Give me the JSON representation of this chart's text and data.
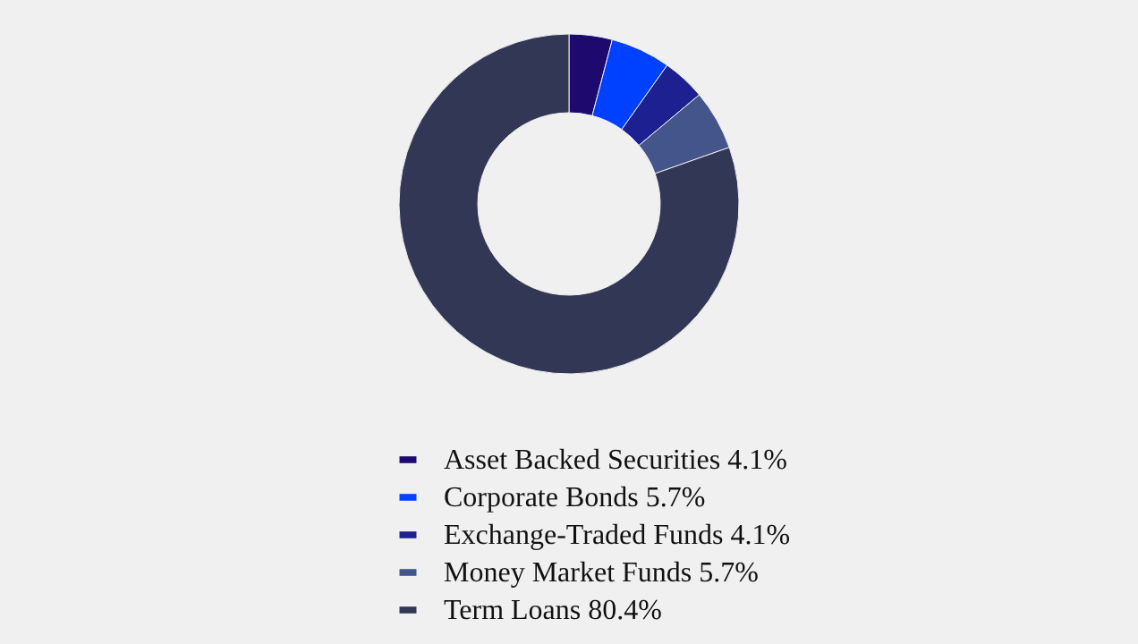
{
  "chart_data": {
    "type": "donut",
    "categories": [
      "Asset Backed Securities 4.1%",
      "Corporate Bonds 5.7%",
      "Exchange-Traded Funds 4.1%",
      "Money Market Funds 5.7%",
      "Term Loans 80.4%"
    ],
    "values": [
      4.1,
      5.7,
      4.1,
      5.7,
      80.4
    ],
    "colors": [
      "#1e0a6e",
      "#0040ff",
      "#1c2090",
      "#44558c",
      "#323755"
    ],
    "legend": "bottom"
  }
}
